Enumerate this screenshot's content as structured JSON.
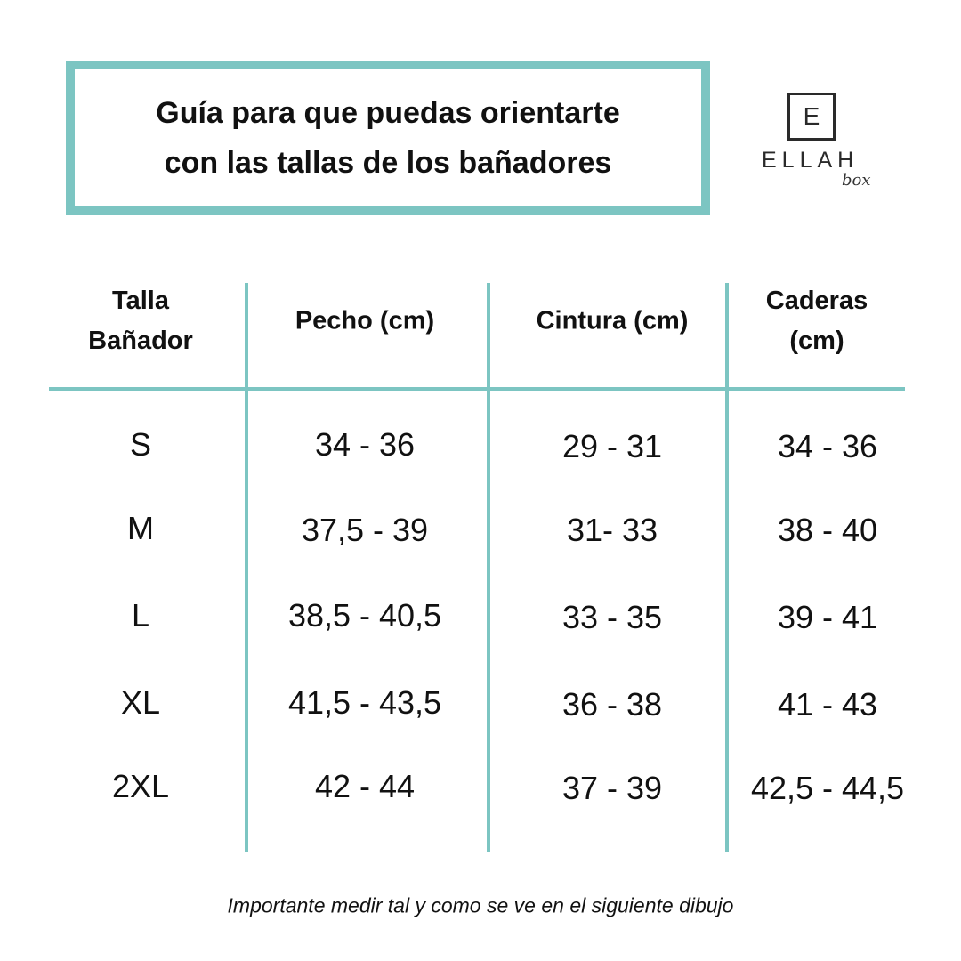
{
  "title": {
    "line1": "Guía para que puedas orientarte",
    "line2": "con las tallas de los bañadores"
  },
  "logo": {
    "letter": "E",
    "word": "ELLAH",
    "sub": "box"
  },
  "colors": {
    "accent": "#7cc5c2",
    "text": "#111111"
  },
  "table": {
    "headers": [
      {
        "line1": "Talla",
        "line2": "Bañador"
      },
      {
        "line1": "Pecho (cm)",
        "line2": ""
      },
      {
        "line1": "Cintura (cm)",
        "line2": ""
      },
      {
        "line1": "Caderas",
        "line2": "(cm)"
      }
    ],
    "rows": [
      [
        "S",
        "34 - 36",
        "29 - 31",
        "34 - 36"
      ],
      [
        "M",
        "37,5 - 39",
        "31- 33",
        "38 - 40"
      ],
      [
        "L",
        "38,5 - 40,5",
        "33 - 35",
        "39 - 41"
      ],
      [
        "XL",
        "41,5 - 43,5",
        "36 - 38",
        "41 - 43"
      ],
      [
        "2XL",
        "42 - 44",
        "37 - 39",
        "42,5 - 44,5"
      ]
    ]
  },
  "footer": "Importante medir tal y como se ve en el siguiente dibujo"
}
